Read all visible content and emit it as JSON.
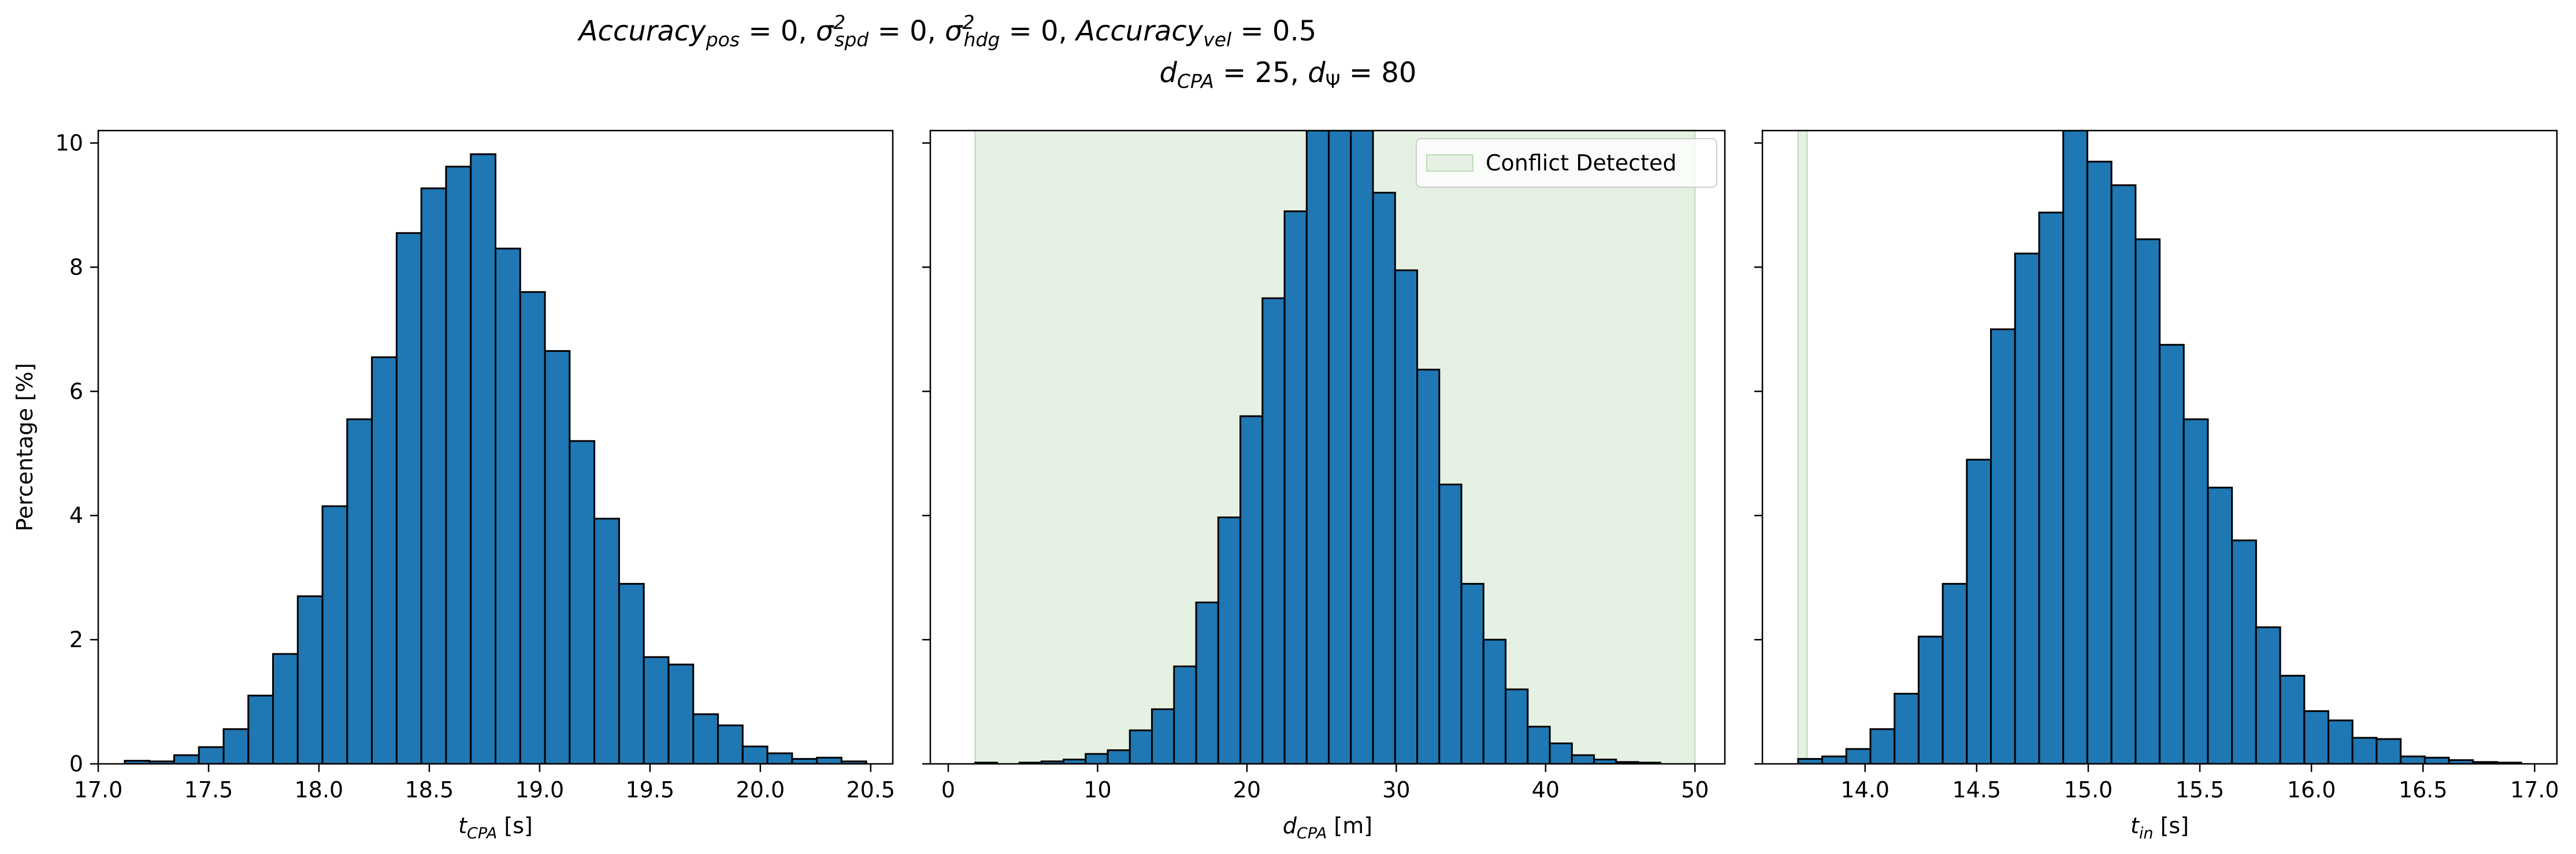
{
  "figure": {
    "title_line1": "Accuracy_pos = 0, σ²_spd = 0, σ²_hdg = 0, Accuracy_vel = 0.5",
    "title_line2": "d_CPA = 25, d_Ψ = 80"
  },
  "colors": {
    "bar": "#1f77b4",
    "edge": "#000000",
    "shade": "#e5f1e3",
    "shade_edge": "#b9dbb4"
  },
  "chart_data": [
    {
      "type": "bar",
      "xlabel": "t_CPA [s]",
      "ylabel": "Percentage [%]",
      "xlim": [
        17.0,
        20.6
      ],
      "ylim": [
        0,
        10.2
      ],
      "grid": false,
      "xticks": [
        "17.0",
        "17.5",
        "18.0",
        "18.5",
        "19.0",
        "19.5",
        "20.0",
        "20.5"
      ],
      "yticks": [
        "0",
        "2",
        "4",
        "6",
        "8",
        "10"
      ],
      "bin_start": 17.12,
      "bin_width": 0.112,
      "values": [
        0.05,
        0.04,
        0.14,
        0.27,
        0.56,
        1.1,
        1.77,
        2.7,
        4.15,
        5.55,
        6.55,
        8.55,
        9.27,
        9.62,
        9.82,
        8.3,
        7.6,
        6.65,
        5.2,
        3.95,
        2.9,
        1.72,
        1.6,
        0.8,
        0.62,
        0.28,
        0.17,
        0.08,
        0.1,
        0.04
      ]
    },
    {
      "type": "bar",
      "xlabel": "d_CPA [m]",
      "ylabel": "",
      "xlim": [
        -1.2,
        52.0
      ],
      "ylim": [
        0,
        10.2
      ],
      "grid": false,
      "xticks": [
        "0",
        "10",
        "20",
        "30",
        "40",
        "50"
      ],
      "yticks": [
        "0",
        "2",
        "4",
        "6",
        "8",
        "10"
      ],
      "legend": {
        "label": "Conflict Detected",
        "placement": "upper right"
      },
      "shaded_region": [
        1.8,
        50.0
      ],
      "bin_start": 1.8,
      "bin_width": 1.48,
      "values": [
        0.02,
        0.0,
        0.02,
        0.04,
        0.07,
        0.16,
        0.22,
        0.54,
        0.88,
        1.57,
        2.6,
        3.97,
        5.6,
        7.5,
        8.9,
        10.2,
        10.2,
        10.2,
        9.2,
        7.95,
        6.35,
        4.5,
        2.9,
        2.0,
        1.2,
        0.6,
        0.33,
        0.14,
        0.07,
        0.03,
        0.02
      ]
    },
    {
      "type": "bar",
      "xlabel": "t_in [s]",
      "ylabel": "",
      "xlim": [
        13.54,
        17.1
      ],
      "ylim": [
        0,
        10.2
      ],
      "grid": false,
      "xticks": [
        "14.0",
        "14.5",
        "15.0",
        "15.5",
        "16.0",
        "16.5",
        "17.0"
      ],
      "yticks": [
        "0",
        "2",
        "4",
        "6",
        "8",
        "10"
      ],
      "shaded_region": [
        13.7,
        13.74
      ],
      "bin_start": 13.7,
      "bin_width": 0.108,
      "values": [
        0.08,
        0.12,
        0.24,
        0.56,
        1.13,
        2.05,
        2.9,
        4.9,
        7.0,
        8.22,
        8.88,
        10.2,
        9.7,
        9.32,
        8.45,
        6.75,
        5.55,
        4.45,
        3.6,
        2.2,
        1.42,
        0.85,
        0.7,
        0.42,
        0.4,
        0.12,
        0.1,
        0.06,
        0.03,
        0.02
      ]
    }
  ]
}
